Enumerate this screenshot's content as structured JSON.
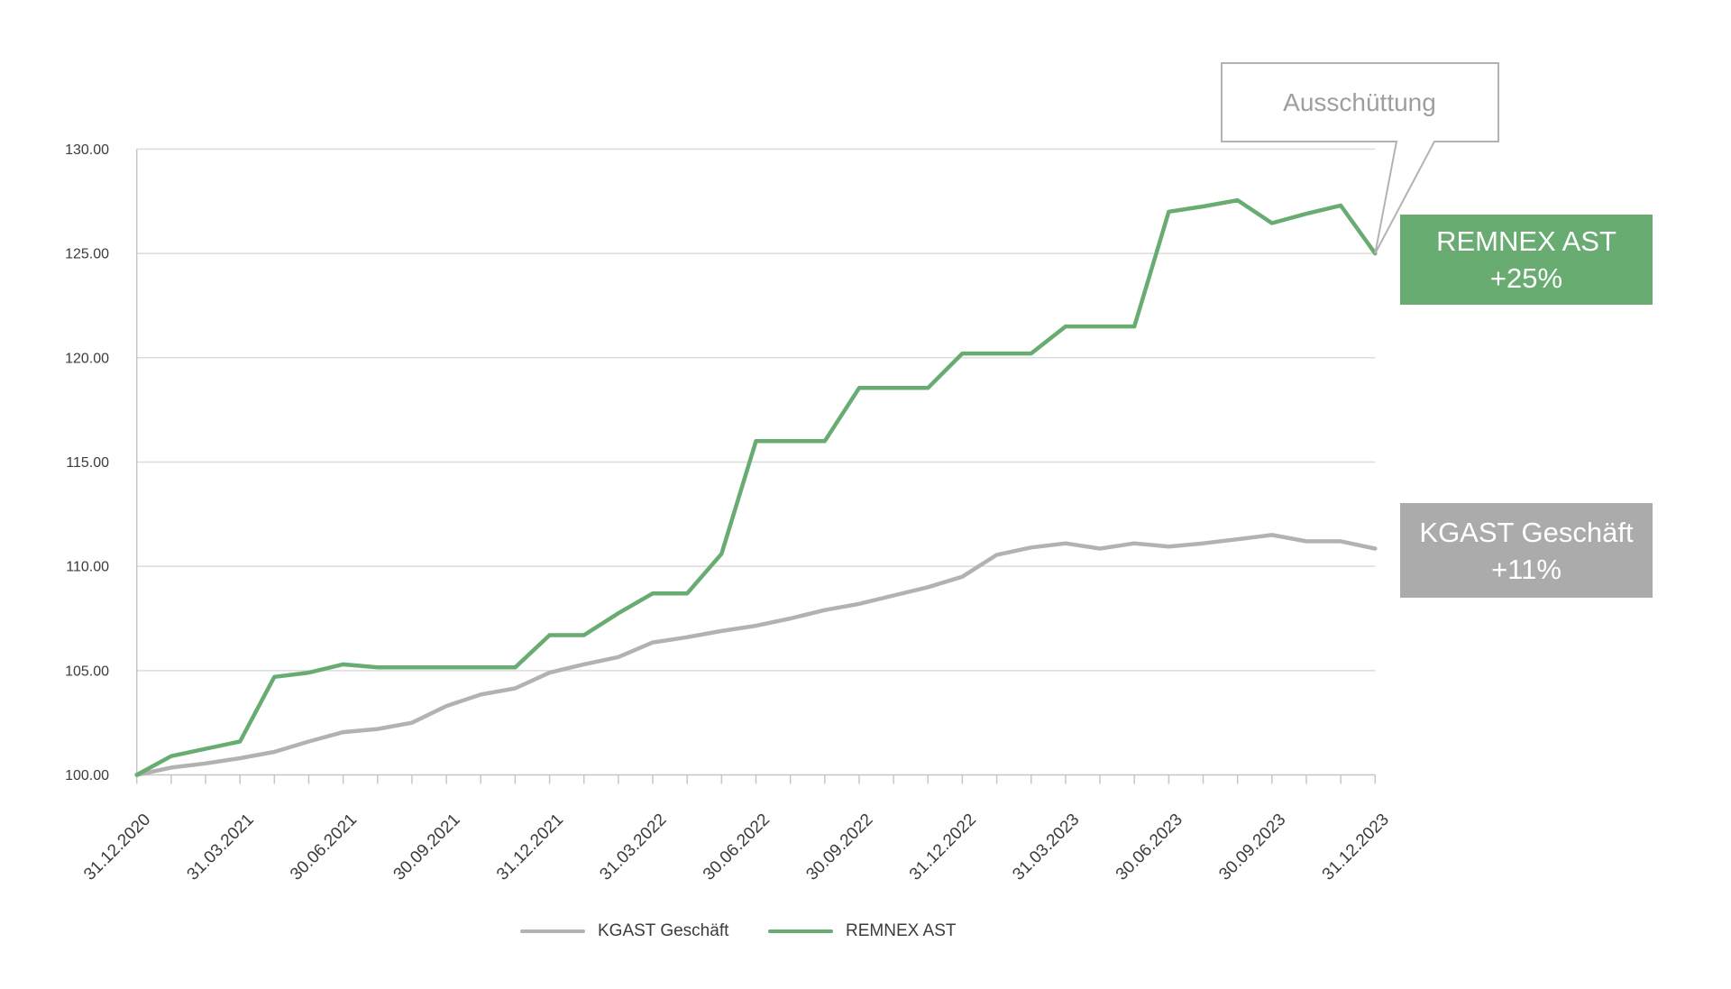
{
  "page": {
    "background": "#ffffff"
  },
  "chart_data": {
    "type": "line",
    "title": "",
    "xlabel": "",
    "ylabel": "",
    "x_tick_labels": [
      "31.12.2020",
      "31.03.2021",
      "30.06.2021",
      "30.09.2021",
      "31.12.2021",
      "31.03.2022",
      "30.06.2022",
      "30.09.2022",
      "31.12.2022",
      "31.03.2023",
      "30.06.2023",
      "30.09.2023",
      "31.12.2023"
    ],
    "points_per_tick_label": 3,
    "n_points": 37,
    "series": [
      {
        "name": "KGAST Geschäft",
        "color": "#b2b2b2",
        "values": [
          100.0,
          100.35,
          100.55,
          100.8,
          101.1,
          101.6,
          102.05,
          102.2,
          102.5,
          103.3,
          103.85,
          104.15,
          104.9,
          105.3,
          105.65,
          106.35,
          106.6,
          106.9,
          107.15,
          107.5,
          107.9,
          108.2,
          108.6,
          109.0,
          109.5,
          110.55,
          110.9,
          111.1,
          110.85,
          111.1,
          110.95,
          111.1,
          111.3,
          111.5,
          111.2,
          111.2,
          110.85
        ]
      },
      {
        "name": "REMNEX AST",
        "color": "#68ac72",
        "values": [
          100.0,
          100.9,
          101.25,
          101.6,
          104.7,
          104.9,
          105.3,
          105.15,
          105.15,
          105.15,
          105.15,
          105.15,
          106.7,
          106.7,
          107.75,
          108.7,
          108.7,
          110.6,
          116.0,
          116.0,
          116.0,
          118.55,
          118.55,
          118.55,
          120.2,
          120.2,
          120.2,
          121.5,
          121.5,
          121.5,
          127.0,
          127.25,
          127.55,
          126.45,
          126.9,
          127.3,
          125.0
        ]
      }
    ],
    "ylim": [
      100,
      130
    ],
    "ytick_labels": [
      "100.00",
      "105.00",
      "110.00",
      "115.00",
      "120.00",
      "125.00",
      "130.00"
    ],
    "grid": "horizontal",
    "legend_position": "bottom"
  },
  "annotation": {
    "label": "Ausschüttung",
    "points_to_value": 125.0
  },
  "end_labels": {
    "remnex": {
      "title": "REMNEX AST",
      "change": "+25%",
      "bg": "#68ac72"
    },
    "kgast": {
      "title": "KGAST Geschäft",
      "change": "+11%",
      "bg": "#ababab"
    }
  },
  "legend": {
    "items": [
      {
        "label": "KGAST Geschäft",
        "color": "#b2b2b2"
      },
      {
        "label": "REMNEX AST",
        "color": "#68ac72"
      }
    ]
  },
  "colors": {
    "grid": "#dcdcdc",
    "axis": "#c6c6c6",
    "tick_text": "#3c3c3c",
    "callout_border": "#b3b3b3",
    "callout_text": "#9e9e9e",
    "callout_fill": "#ffffff"
  }
}
